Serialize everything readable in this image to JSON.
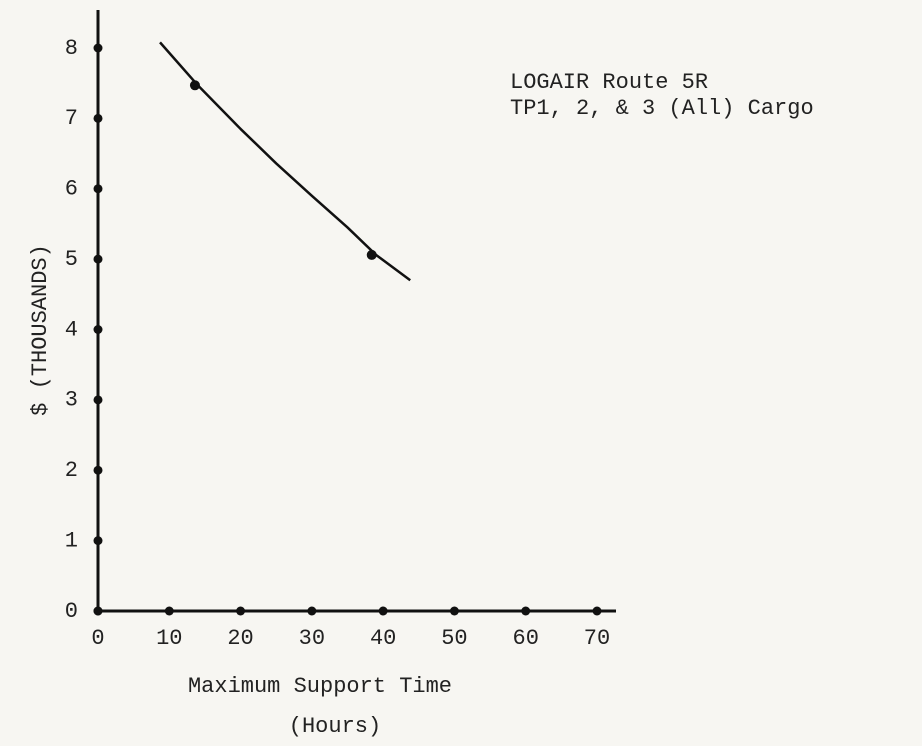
{
  "chart_data": {
    "type": "line",
    "ylabel": "$ (THOUSANDS)",
    "xlabel": "Maximum Support Time",
    "xlabel_unit": "(Hours)",
    "annotation": [
      "LOGAIR Route 5R",
      "TP1, 2, & 3 (All) Cargo"
    ],
    "series": [
      {
        "color": "#111111",
        "style": "line",
        "x": [
          8.7,
          14,
          20,
          25,
          30,
          35,
          39,
          43.8
        ],
        "values": [
          8.08,
          7.47,
          6.85,
          6.36,
          5.9,
          5.45,
          5.06,
          4.7
        ]
      },
      {
        "color": "#111111",
        "style": "points",
        "x": [
          13.6,
          38.4
        ],
        "values": [
          7.47,
          5.06
        ]
      }
    ],
    "xlim": [
      0,
      70
    ],
    "ylim": [
      0,
      8
    ],
    "xticks": [
      0,
      10,
      20,
      30,
      40,
      50,
      60,
      70
    ],
    "yticks": [
      0,
      1,
      2,
      3,
      4,
      5,
      6,
      7,
      8
    ]
  }
}
